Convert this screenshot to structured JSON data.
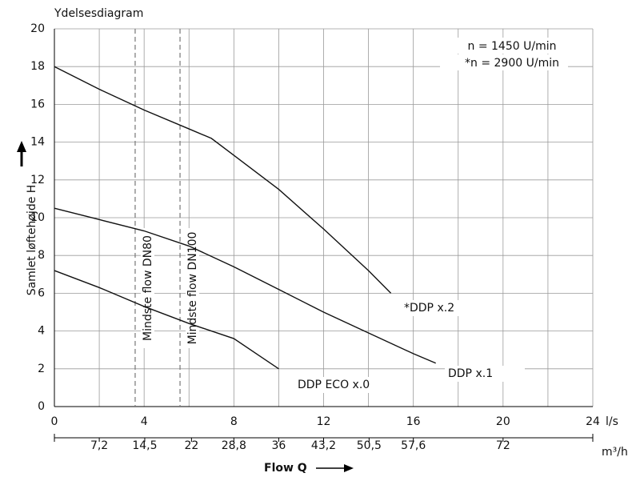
{
  "chart_data": {
    "type": "line",
    "title": "Ydelsesdiagram",
    "y_label": "Samlet løftehøjde H",
    "x_unit": "l/s",
    "x2_unit": "m³/h",
    "x_label": "Flow Q",
    "annotations": [
      "n = 1450 U/min",
      "*n = 2900 U/min"
    ],
    "min_flow_lines": [
      {
        "label": "Mindste flow DN80",
        "x": 3.6
      },
      {
        "label": "Mindste flow DN100",
        "x": 5.6
      }
    ],
    "xlim": [
      0,
      24
    ],
    "xticks": [
      0,
      4,
      8,
      12,
      16,
      20,
      24
    ],
    "xgrid": [
      2,
      4,
      6,
      8,
      10,
      12,
      14,
      16,
      18,
      20,
      22,
      24
    ],
    "x2lim": [
      0,
      86.4
    ],
    "x2ticks": [
      {
        "value": 7.2,
        "label": "7,2"
      },
      {
        "value": 14.5,
        "label": "14,5"
      },
      22,
      {
        "value": 28.8,
        "label": "28,8"
      },
      36,
      {
        "value": 43.2,
        "label": "43,2"
      },
      {
        "value": 50.5,
        "label": "50,5"
      },
      {
        "value": 57.6,
        "label": "57,6"
      },
      72
    ],
    "ylim": [
      0,
      20
    ],
    "yticks": [
      0,
      2,
      4,
      6,
      8,
      10,
      12,
      14,
      16,
      18,
      20
    ],
    "grid": true,
    "series": [
      {
        "name": "*DDP x.2",
        "color": "#111111",
        "x": [
          0,
          2,
          4,
          6,
          7,
          8,
          10,
          12,
          14,
          15
        ],
        "values": [
          18,
          16.8,
          15.7,
          14.7,
          14.2,
          13.3,
          11.5,
          9.4,
          7.2,
          6
        ]
      },
      {
        "name": "DDP x.1",
        "color": "#111111",
        "x": [
          0,
          2,
          4,
          6,
          8,
          10,
          12,
          14,
          16,
          17
        ],
        "values": [
          10.5,
          9.9,
          9.3,
          8.5,
          7.4,
          6.2,
          5.0,
          3.9,
          2.8,
          2.3
        ]
      },
      {
        "name": "DDP ECO x.0",
        "color": "#111111",
        "x": [
          0,
          2,
          4,
          6,
          8,
          9,
          10
        ],
        "values": [
          7.2,
          6.3,
          5.3,
          4.4,
          3.6,
          2.8,
          2.0
        ]
      }
    ]
  }
}
